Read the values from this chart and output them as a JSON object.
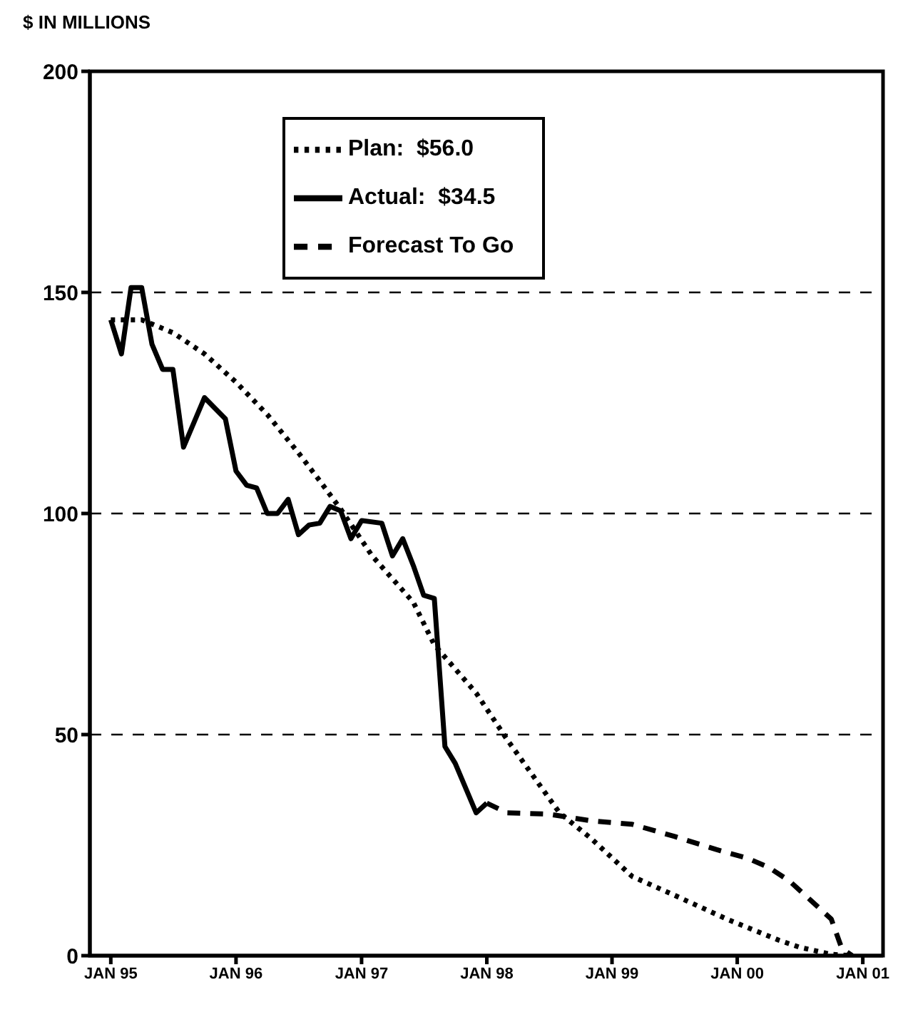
{
  "chart_data": {
    "type": "line",
    "ylabel": "$ IN MILLIONS",
    "xlim": [
      "1994-11",
      "2001-03"
    ],
    "ylim": [
      0,
      200
    ],
    "yticks": [
      0,
      50,
      100,
      150,
      200
    ],
    "xticks": [
      {
        "value": "1995-01",
        "label": "JAN 95"
      },
      {
        "value": "1996-01",
        "label": "JAN 96"
      },
      {
        "value": "1997-01",
        "label": "JAN 97"
      },
      {
        "value": "1998-01",
        "label": "JAN 98"
      },
      {
        "value": "1999-01",
        "label": "JAN 99"
      },
      {
        "value": "2000-01",
        "label": "JAN 00"
      },
      {
        "value": "2001-01",
        "label": "JAN 01"
      }
    ],
    "grid": "y",
    "legend": "top",
    "marker": "none",
    "series": [
      {
        "name": "Plan:  $56.0",
        "color": "#000000",
        "line_style": "dotted",
        "x": [
          "1995-01",
          "1995-04",
          "1995-07",
          "1995-10",
          "1996-01",
          "1996-04",
          "1996-07",
          "1996-09",
          "1996-11",
          "1997-02",
          "1997-06",
          "1997-08",
          "1997-12",
          "1998-03",
          "1998-08",
          "1998-11",
          "1999-03",
          "1999-07",
          "1999-12",
          "2000-05",
          "2000-07",
          "2000-10",
          "2000-12"
        ],
        "values": [
          143.8,
          143.8,
          140.9,
          136.1,
          129.7,
          122.4,
          113.7,
          107.4,
          101,
          90.4,
          79.9,
          70.3,
          59.4,
          48.9,
          32.3,
          26.5,
          17.9,
          13.7,
          8.3,
          3.5,
          1.9,
          0.3,
          0
        ]
      },
      {
        "name": "Actual:  $34.5",
        "color": "#000000",
        "line_style": "solid",
        "x": [
          "1995-01",
          "1995-02",
          "1995-03",
          "1995-04",
          "1995-05",
          "1995-06",
          "1995-07",
          "1995-08",
          "1995-10",
          "1995-12",
          "1996-01",
          "1996-02",
          "1996-03",
          "1996-04",
          "1996-05",
          "1996-06",
          "1996-07",
          "1996-08",
          "1996-09",
          "1996-10",
          "1996-11",
          "1996-12",
          "1997-01",
          "1997-03",
          "1997-04",
          "1997-05",
          "1997-06",
          "1997-07",
          "1997-08",
          "1997-09",
          "1997-10",
          "1997-12",
          "1998-01"
        ],
        "values": [
          143.8,
          136.1,
          151.1,
          151.1,
          138.3,
          132.6,
          132.6,
          115,
          126.2,
          121.4,
          109.6,
          106.4,
          105.8,
          100,
          100,
          103.2,
          95.2,
          97.4,
          97.8,
          101.6,
          100.6,
          94.3,
          98.4,
          97.8,
          90.4,
          94.3,
          88.2,
          81.5,
          80.8,
          47.3,
          43.5,
          32.3,
          34.5
        ]
      },
      {
        "name": "Forecast To Go",
        "color": "#000000",
        "line_style": "dashed",
        "x": [
          "1998-01",
          "1998-03",
          "1998-07",
          "1998-11",
          "1999-03",
          "1999-07",
          "1999-11",
          "2000-02",
          "2000-04",
          "2000-06",
          "2000-08",
          "2000-10",
          "2000-11",
          "2000-12"
        ],
        "values": [
          34.5,
          32.3,
          32,
          30.5,
          29.7,
          27,
          24,
          22,
          20,
          16.9,
          12.6,
          8.3,
          1.6,
          0
        ]
      }
    ]
  }
}
